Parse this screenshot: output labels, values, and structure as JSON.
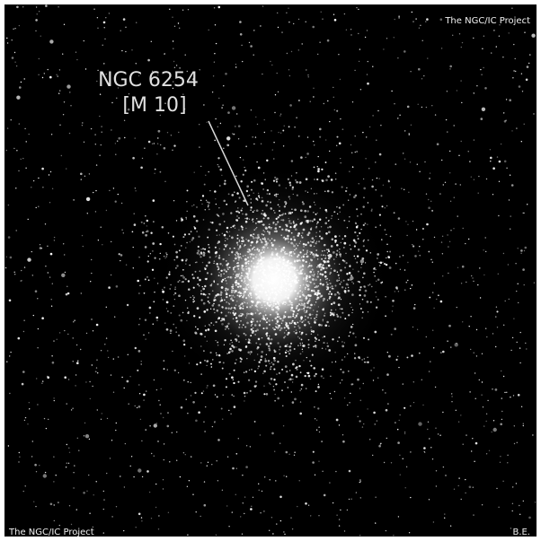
{
  "label": {
    "name": "NGC 6254",
    "alias": "[M 10]"
  },
  "credits": {
    "top_right": "The NGC/IC Project",
    "bottom_left": "The NGC/IC Project",
    "bottom_right": "B.E."
  }
}
